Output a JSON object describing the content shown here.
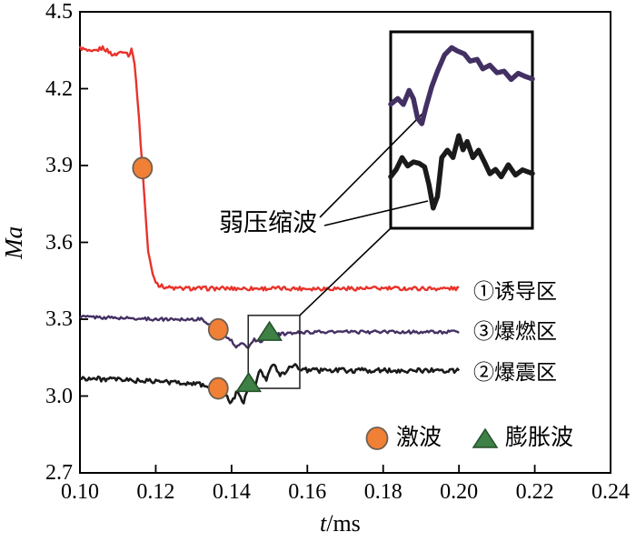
{
  "chart_data": {
    "type": "line",
    "title": "",
    "xlabel": "t/ms",
    "ylabel": "Ma",
    "xlim": [
      0.1,
      0.24
    ],
    "ylim": [
      2.7,
      4.5
    ],
    "x_ticks": [
      "0.10",
      "0.12",
      "0.14",
      "0.16",
      "0.18",
      "0.20",
      "0.22",
      "0.24"
    ],
    "y_ticks": [
      "2.7",
      "3.0",
      "3.3",
      "3.6",
      "3.9",
      "4.2",
      "4.5"
    ],
    "grid": false,
    "legend_position": "inside-bottom-right",
    "series": [
      {
        "name": "①诱导区",
        "color": "#e8332b",
        "width": 2.4,
        "noise": 0.008,
        "keypoints": [
          [
            0.1,
            4.36
          ],
          [
            0.103,
            4.34
          ],
          [
            0.106,
            4.36
          ],
          [
            0.109,
            4.33
          ],
          [
            0.1115,
            4.35
          ],
          [
            0.113,
            4.33
          ],
          [
            0.1138,
            4.36
          ],
          [
            0.1148,
            4.24
          ],
          [
            0.1165,
            3.89
          ],
          [
            0.118,
            3.56
          ],
          [
            0.1195,
            3.46
          ],
          [
            0.121,
            3.43
          ],
          [
            0.125,
            3.42
          ],
          [
            0.16,
            3.42
          ],
          [
            0.2,
            3.42
          ]
        ]
      },
      {
        "name": "③爆燃区",
        "color": "#433063",
        "width": 2.4,
        "noise": 0.006,
        "keypoints": [
          [
            0.1,
            3.31
          ],
          [
            0.12,
            3.3
          ],
          [
            0.132,
            3.3
          ],
          [
            0.1365,
            3.26
          ],
          [
            0.139,
            3.23
          ],
          [
            0.1415,
            3.19
          ],
          [
            0.143,
            3.21
          ],
          [
            0.1445,
            3.19
          ],
          [
            0.146,
            3.22
          ],
          [
            0.148,
            3.21
          ],
          [
            0.15,
            3.26
          ],
          [
            0.152,
            3.24
          ],
          [
            0.16,
            3.25
          ],
          [
            0.2,
            3.25
          ]
        ]
      },
      {
        "name": "②爆震区",
        "color": "#1a1a1a",
        "width": 2.6,
        "noise": 0.009,
        "keypoints": [
          [
            0.1,
            3.07
          ],
          [
            0.115,
            3.06
          ],
          [
            0.13,
            3.05
          ],
          [
            0.1365,
            3.03
          ],
          [
            0.1385,
            3.0
          ],
          [
            0.14,
            2.97
          ],
          [
            0.1415,
            3.02
          ],
          [
            0.143,
            2.97
          ],
          [
            0.1445,
            3.04
          ],
          [
            0.146,
            3.02
          ],
          [
            0.1475,
            3.11
          ],
          [
            0.149,
            3.06
          ],
          [
            0.151,
            3.13
          ],
          [
            0.153,
            3.08
          ],
          [
            0.156,
            3.12
          ],
          [
            0.16,
            3.1
          ],
          [
            0.2,
            3.1
          ]
        ]
      }
    ],
    "markers": {
      "shock": {
        "label": "激波",
        "shape": "circle",
        "fill": "#ef8036",
        "stroke": "#6f5f51",
        "points": [
          [
            0.1165,
            3.89
          ],
          [
            0.1365,
            3.26
          ],
          [
            0.1365,
            3.03
          ]
        ]
      },
      "expansion": {
        "label": "膨胀波",
        "shape": "triangle",
        "fill": "#3e8045",
        "stroke": "#234f28",
        "points": [
          [
            0.1445,
            3.05
          ],
          [
            0.15,
            3.25
          ]
        ]
      }
    },
    "zoom_region": {
      "t": [
        0.1444,
        0.158
      ],
      "Ma": [
        3.03,
        3.315
      ]
    },
    "inset_curves": {
      "purple": [
        [
          0,
          0.37
        ],
        [
          0.05,
          0.34
        ],
        [
          0.09,
          0.37
        ],
        [
          0.13,
          0.3
        ],
        [
          0.16,
          0.34
        ],
        [
          0.19,
          0.44
        ],
        [
          0.22,
          0.47
        ],
        [
          0.25,
          0.38
        ],
        [
          0.29,
          0.28
        ],
        [
          0.33,
          0.2
        ],
        [
          0.38,
          0.12
        ],
        [
          0.43,
          0.08
        ],
        [
          0.47,
          0.1
        ],
        [
          0.52,
          0.11
        ],
        [
          0.56,
          0.15
        ],
        [
          0.61,
          0.14
        ],
        [
          0.65,
          0.19
        ],
        [
          0.7,
          0.17
        ],
        [
          0.75,
          0.21
        ],
        [
          0.8,
          0.2
        ],
        [
          0.85,
          0.24
        ],
        [
          0.9,
          0.21
        ],
        [
          0.95,
          0.23
        ],
        [
          1,
          0.24
        ]
      ],
      "black": [
        [
          0,
          0.74
        ],
        [
          0.04,
          0.7
        ],
        [
          0.08,
          0.64
        ],
        [
          0.12,
          0.68
        ],
        [
          0.16,
          0.66
        ],
        [
          0.2,
          0.67
        ],
        [
          0.24,
          0.69
        ],
        [
          0.27,
          0.78
        ],
        [
          0.3,
          0.9
        ],
        [
          0.33,
          0.84
        ],
        [
          0.36,
          0.64
        ],
        [
          0.4,
          0.6
        ],
        [
          0.44,
          0.64
        ],
        [
          0.48,
          0.53
        ],
        [
          0.51,
          0.6
        ],
        [
          0.54,
          0.56
        ],
        [
          0.58,
          0.64
        ],
        [
          0.62,
          0.6
        ],
        [
          0.66,
          0.66
        ],
        [
          0.7,
          0.72
        ],
        [
          0.74,
          0.7
        ],
        [
          0.78,
          0.74
        ],
        [
          0.83,
          0.68
        ],
        [
          0.88,
          0.73
        ],
        [
          0.93,
          0.7
        ],
        [
          1,
          0.72
        ]
      ]
    },
    "annotation": "弱压缩波"
  },
  "labels": {
    "ylabel": "Ma",
    "xlabel_var": "t",
    "xlabel_unit": "/ms",
    "annotation": "弱压缩波",
    "zone1": "①诱导区",
    "zone3": "③爆燃区",
    "zone2": "②爆震区",
    "legend_shock": "激波",
    "legend_expansion": "膨胀波"
  },
  "colors": {
    "induction_line": "#e8332b",
    "deflagration_line": "#433063",
    "detonation_line": "#1a1a1a",
    "shock_marker_fill": "#ef8036",
    "expansion_marker_fill": "#3e8045",
    "axis": "#000000"
  }
}
